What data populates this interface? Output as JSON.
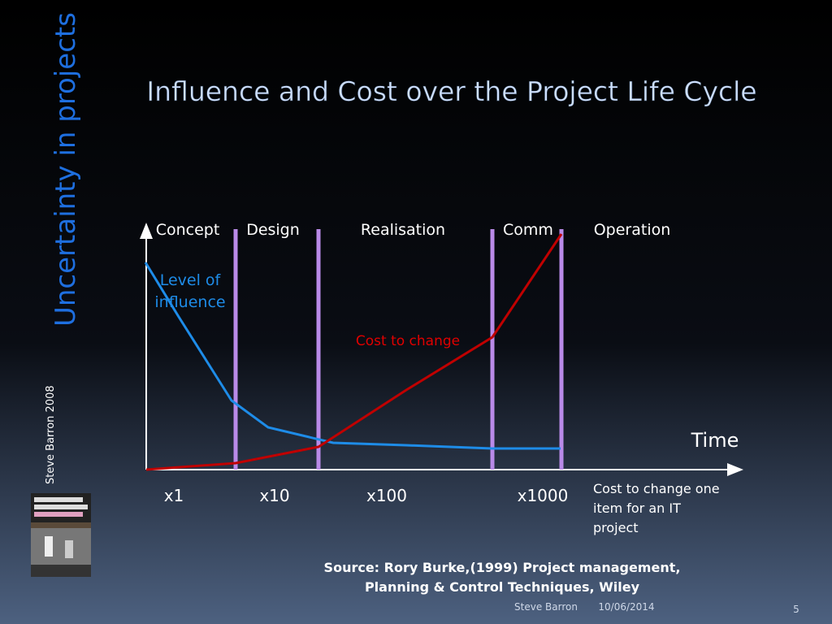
{
  "slide": {
    "side_title": "Uncertainty in projects",
    "side_credit": "Steve Barron 2008",
    "title": "Influence and Cost over the Project Life Cycle",
    "phases": [
      "Concept",
      "Design",
      "Realisation",
      "Comm",
      "Operation"
    ],
    "influence_label": [
      "Level of",
      "influence"
    ],
    "cost_label": "Cost to change",
    "time_label": "Time",
    "multipliers": [
      "x1",
      "x10",
      "x100",
      "x1000"
    ],
    "multiplier_note": [
      "Cost to change one",
      "item for an IT",
      "project"
    ],
    "source": [
      "Source: Rory Burke,(1999) Project management,",
      "Planning & Control Techniques, Wiley"
    ],
    "footer": {
      "author": "Steve Barron",
      "date": "10/06/2014",
      "page": "5"
    }
  }
}
